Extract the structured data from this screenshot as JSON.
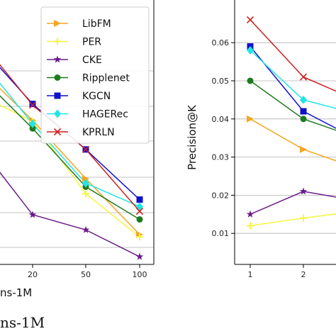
{
  "chart_data": [
    {
      "type": "line",
      "title": "",
      "xlabel": "ns-1M",
      "ylabel": "",
      "caption": "ns-1M",
      "categories": [
        "20",
        "50",
        "100"
      ],
      "x_visible_partial": "0",
      "ylim": [
        0,
        1
      ],
      "grid": "y",
      "legend_position": "top-right",
      "series": [
        {
          "name": "LibFM",
          "color": "#f5a623",
          "marker": "triangle-right",
          "values": [
            0.545,
            0.295,
            0.055
          ],
          "left_value": 0.71
        },
        {
          "name": "PER",
          "color": "#f5f542",
          "marker": "plus",
          "values": [
            0.54,
            0.23,
            0.045
          ],
          "left_value": 0.625
        },
        {
          "name": "CKE",
          "color": "#6a1b8a",
          "marker": "star",
          "values": [
            0.14,
            0.075,
            -0.04
          ],
          "left_value": 0.36
        },
        {
          "name": "Ripplenet",
          "color": "#1e7a1e",
          "marker": "circle",
          "values": [
            0.51,
            0.26,
            0.12
          ],
          "left_value": 0.68
        },
        {
          "name": "KGCN",
          "color": "#1010cc",
          "marker": "square",
          "values": [
            0.615,
            0.42,
            0.205
          ],
          "left_value": 0.805
        },
        {
          "name": "HAGERec",
          "color": "#22e5e5",
          "marker": "diamond",
          "values": [
            0.53,
            0.275,
            0.175
          ],
          "left_value": 0.74
        },
        {
          "name": "KPRLN",
          "color": "#cc2222",
          "marker": "x",
          "values": [
            0.61,
            0.42,
            0.155
          ],
          "left_value": 0.82
        }
      ]
    },
    {
      "type": "line",
      "title": "",
      "xlabel": "",
      "ylabel": "Precision@K",
      "categories": [
        "1",
        "2"
      ],
      "ylim": [
        0.005,
        0.07
      ],
      "yticks": [
        "0.01",
        "0.02",
        "0.03",
        "0.04",
        "0.05",
        "0.06"
      ],
      "grid": "y",
      "series": [
        {
          "name": "LibFM",
          "values": [
            0.04,
            0.032
          ],
          "right_value": 0.028
        },
        {
          "name": "PER",
          "values": [
            0.012,
            0.014
          ],
          "right_value": 0.0155
        },
        {
          "name": "CKE",
          "values": [
            0.015,
            0.021
          ],
          "right_value": 0.019
        },
        {
          "name": "Ripplenet",
          "values": [
            0.05,
            0.04
          ],
          "right_value": 0.036
        },
        {
          "name": "KGCN",
          "values": [
            0.059,
            0.042
          ],
          "right_value": 0.036
        },
        {
          "name": "HAGERec",
          "values": [
            0.058,
            0.045
          ],
          "right_value": 0.042
        },
        {
          "name": "KPRLN",
          "values": [
            0.066,
            0.051
          ],
          "right_value": 0.046
        }
      ]
    }
  ]
}
